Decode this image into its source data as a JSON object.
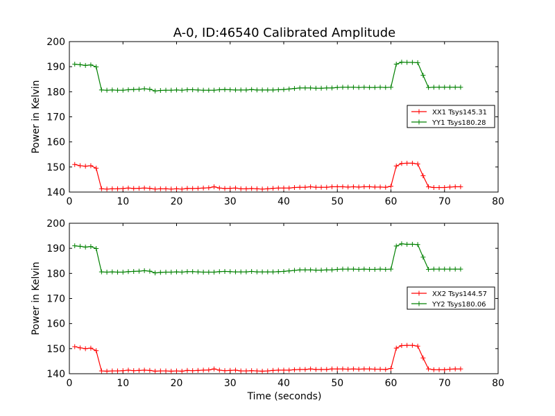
{
  "chart_data": [
    {
      "type": "line",
      "title": "A-0, ID:46540 Calibrated Amplitude",
      "xlabel": "",
      "ylabel": "Power in Kelvin",
      "xlim": [
        0,
        80
      ],
      "ylim": [
        140,
        200
      ],
      "xticks": [
        "0",
        "10",
        "20",
        "30",
        "40",
        "50",
        "60",
        "70",
        "80"
      ],
      "yticks": [
        "140",
        "150",
        "160",
        "170",
        "180",
        "190",
        "200"
      ],
      "grid": false,
      "legend_position": "center-right",
      "series": [
        {
          "name": "XX1 Tsys145.31",
          "color": "#ff0000",
          "marker": "plus",
          "x": [
            1,
            2,
            3,
            4,
            5,
            6,
            7,
            8,
            9,
            10,
            11,
            12,
            13,
            14,
            15,
            16,
            17,
            18,
            19,
            20,
            21,
            22,
            23,
            24,
            25,
            26,
            27,
            28,
            29,
            30,
            31,
            32,
            33,
            34,
            35,
            36,
            37,
            38,
            39,
            40,
            41,
            42,
            43,
            44,
            45,
            46,
            47,
            48,
            49,
            50,
            51,
            52,
            53,
            54,
            55,
            56,
            57,
            58,
            59,
            60,
            61,
            62,
            63,
            64,
            65,
            66,
            67,
            68,
            69,
            70,
            71,
            72,
            73
          ],
          "values": [
            151,
            150.5,
            150.3,
            150.5,
            149.5,
            141.3,
            141.2,
            141.3,
            141.3,
            141.4,
            141.6,
            141.4,
            141.5,
            141.6,
            141.5,
            141.2,
            141.3,
            141.3,
            141.2,
            141.3,
            141.2,
            141.5,
            141.4,
            141.5,
            141.6,
            141.7,
            142.1,
            141.6,
            141.4,
            141.5,
            141.6,
            141.3,
            141.3,
            141.4,
            141.3,
            141.2,
            141.3,
            141.5,
            141.6,
            141.6,
            141.6,
            141.8,
            141.9,
            141.9,
            142.1,
            141.9,
            141.9,
            141.9,
            142.1,
            142.1,
            142.1,
            142.0,
            142.1,
            142.0,
            142.1,
            142.1,
            142.0,
            142.0,
            141.9,
            142.3,
            150.4,
            151.4,
            151.5,
            151.5,
            151.2,
            146.5,
            142.1,
            141.8,
            141.8,
            141.8,
            142.0,
            142.1,
            142.1
          ]
        },
        {
          "name": "YY1 Tsys180.28",
          "color": "#008000",
          "marker": "plus",
          "x": [
            1,
            2,
            3,
            4,
            5,
            6,
            7,
            8,
            9,
            10,
            11,
            12,
            13,
            14,
            15,
            16,
            17,
            18,
            19,
            20,
            21,
            22,
            23,
            24,
            25,
            26,
            27,
            28,
            29,
            30,
            31,
            32,
            33,
            34,
            35,
            36,
            37,
            38,
            39,
            40,
            41,
            42,
            43,
            44,
            45,
            46,
            47,
            48,
            49,
            50,
            51,
            52,
            53,
            54,
            55,
            56,
            57,
            58,
            59,
            60,
            61,
            62,
            63,
            64,
            65,
            66,
            67,
            68,
            69,
            70,
            71,
            72,
            73
          ],
          "values": [
            191,
            190.8,
            190.5,
            190.7,
            189.9,
            180.7,
            180.6,
            180.7,
            180.6,
            180.6,
            180.8,
            180.9,
            181.0,
            181.2,
            181.0,
            180.3,
            180.5,
            180.6,
            180.6,
            180.7,
            180.6,
            180.8,
            180.8,
            180.7,
            180.6,
            180.6,
            180.6,
            180.8,
            180.9,
            180.8,
            180.7,
            180.7,
            180.7,
            180.9,
            180.7,
            180.7,
            180.7,
            180.7,
            180.8,
            180.9,
            181.1,
            181.3,
            181.5,
            181.5,
            181.5,
            181.4,
            181.4,
            181.5,
            181.5,
            181.7,
            181.8,
            181.8,
            181.8,
            181.7,
            181.8,
            181.7,
            181.7,
            181.8,
            181.7,
            181.8,
            191.0,
            191.8,
            191.7,
            191.7,
            191.6,
            186.6,
            181.7,
            181.8,
            181.8,
            181.8,
            181.8,
            181.8,
            181.8
          ]
        }
      ]
    },
    {
      "type": "line",
      "title": "",
      "xlabel": "Time (seconds)",
      "ylabel": "Power in Kelvin",
      "xlim": [
        0,
        80
      ],
      "ylim": [
        140,
        200
      ],
      "xticks": [
        "0",
        "10",
        "20",
        "30",
        "40",
        "50",
        "60",
        "70",
        "80"
      ],
      "yticks": [
        "140",
        "150",
        "160",
        "170",
        "180",
        "190",
        "200"
      ],
      "grid": false,
      "legend_position": "center-right",
      "series": [
        {
          "name": "XX2 Tsys144.57",
          "color": "#ff0000",
          "marker": "plus",
          "x": [
            1,
            2,
            3,
            4,
            5,
            6,
            7,
            8,
            9,
            10,
            11,
            12,
            13,
            14,
            15,
            16,
            17,
            18,
            19,
            20,
            21,
            22,
            23,
            24,
            25,
            26,
            27,
            28,
            29,
            30,
            31,
            32,
            33,
            34,
            35,
            36,
            37,
            38,
            39,
            40,
            41,
            42,
            43,
            44,
            45,
            46,
            47,
            48,
            49,
            50,
            51,
            52,
            53,
            54,
            55,
            56,
            57,
            58,
            59,
            60,
            61,
            62,
            63,
            64,
            65,
            66,
            67,
            68,
            69,
            70,
            71,
            72,
            73
          ],
          "values": [
            150.8,
            150.3,
            150.0,
            150.2,
            149.2,
            141.1,
            141.0,
            141.1,
            141.1,
            141.2,
            141.4,
            141.2,
            141.3,
            141.4,
            141.3,
            141.0,
            141.1,
            141.1,
            141.0,
            141.1,
            141.0,
            141.3,
            141.2,
            141.3,
            141.4,
            141.5,
            141.9,
            141.4,
            141.2,
            141.3,
            141.4,
            141.1,
            141.1,
            141.2,
            141.1,
            141.0,
            141.1,
            141.3,
            141.4,
            141.4,
            141.4,
            141.6,
            141.7,
            141.7,
            141.9,
            141.7,
            141.7,
            141.7,
            141.9,
            141.9,
            141.9,
            141.8,
            141.9,
            141.8,
            141.9,
            141.9,
            141.8,
            141.8,
            141.7,
            142.1,
            150.2,
            151.2,
            151.3,
            151.3,
            151.0,
            146.3,
            141.9,
            141.6,
            141.6,
            141.6,
            141.8,
            141.9,
            141.9
          ]
        },
        {
          "name": "YY2 Tsys180.06",
          "color": "#008000",
          "marker": "plus",
          "x": [
            1,
            2,
            3,
            4,
            5,
            6,
            7,
            8,
            9,
            10,
            11,
            12,
            13,
            14,
            15,
            16,
            17,
            18,
            19,
            20,
            21,
            22,
            23,
            24,
            25,
            26,
            27,
            28,
            29,
            30,
            31,
            32,
            33,
            34,
            35,
            36,
            37,
            38,
            39,
            40,
            41,
            42,
            43,
            44,
            45,
            46,
            47,
            48,
            49,
            50,
            51,
            52,
            53,
            54,
            55,
            56,
            57,
            58,
            59,
            60,
            61,
            62,
            63,
            64,
            65,
            66,
            67,
            68,
            69,
            70,
            71,
            72,
            73
          ],
          "values": [
            191,
            190.8,
            190.5,
            190.7,
            189.9,
            180.6,
            180.5,
            180.6,
            180.5,
            180.5,
            180.7,
            180.8,
            180.9,
            181.1,
            180.9,
            180.2,
            180.4,
            180.5,
            180.5,
            180.6,
            180.5,
            180.7,
            180.7,
            180.6,
            180.5,
            180.5,
            180.5,
            180.7,
            180.8,
            180.7,
            180.6,
            180.6,
            180.6,
            180.8,
            180.6,
            180.6,
            180.6,
            180.6,
            180.7,
            180.8,
            181.0,
            181.2,
            181.4,
            181.4,
            181.4,
            181.3,
            181.3,
            181.4,
            181.4,
            181.6,
            181.7,
            181.7,
            181.7,
            181.6,
            181.7,
            181.6,
            181.6,
            181.7,
            181.6,
            181.7,
            190.9,
            191.8,
            191.6,
            191.6,
            191.5,
            186.5,
            181.6,
            181.7,
            181.7,
            181.7,
            181.7,
            181.7,
            181.7
          ]
        }
      ]
    }
  ]
}
